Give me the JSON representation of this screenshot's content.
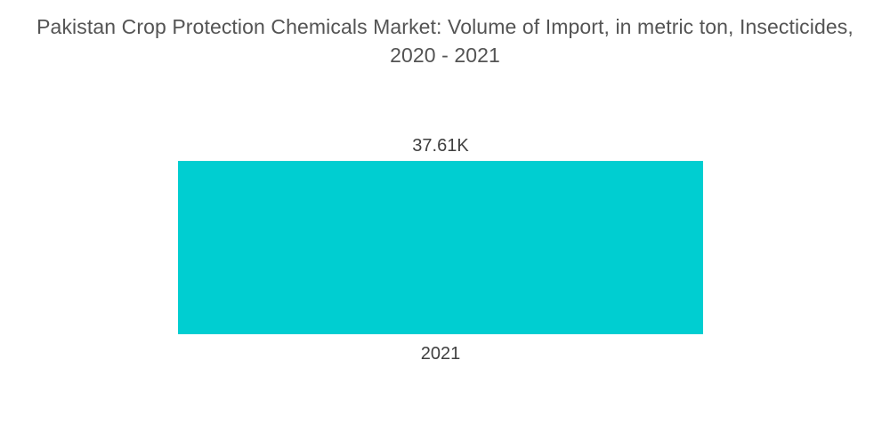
{
  "chart_data": {
    "type": "bar",
    "title_lines": [
      "Pakistan Crop Protection Chemicals Market: Volume of Import, in metric ton, Insecticides,",
      "2020 - 2021"
    ],
    "categories": [
      "2021"
    ],
    "values": [
      37610
    ],
    "value_labels": [
      "37.61K"
    ],
    "xlabel": "",
    "ylabel": "",
    "ylim": [
      0,
      37610
    ],
    "grid": false,
    "legend": "none",
    "colors": {
      "bar": "#00ced1",
      "text": "#3f3f3f",
      "title": "#545454"
    }
  }
}
